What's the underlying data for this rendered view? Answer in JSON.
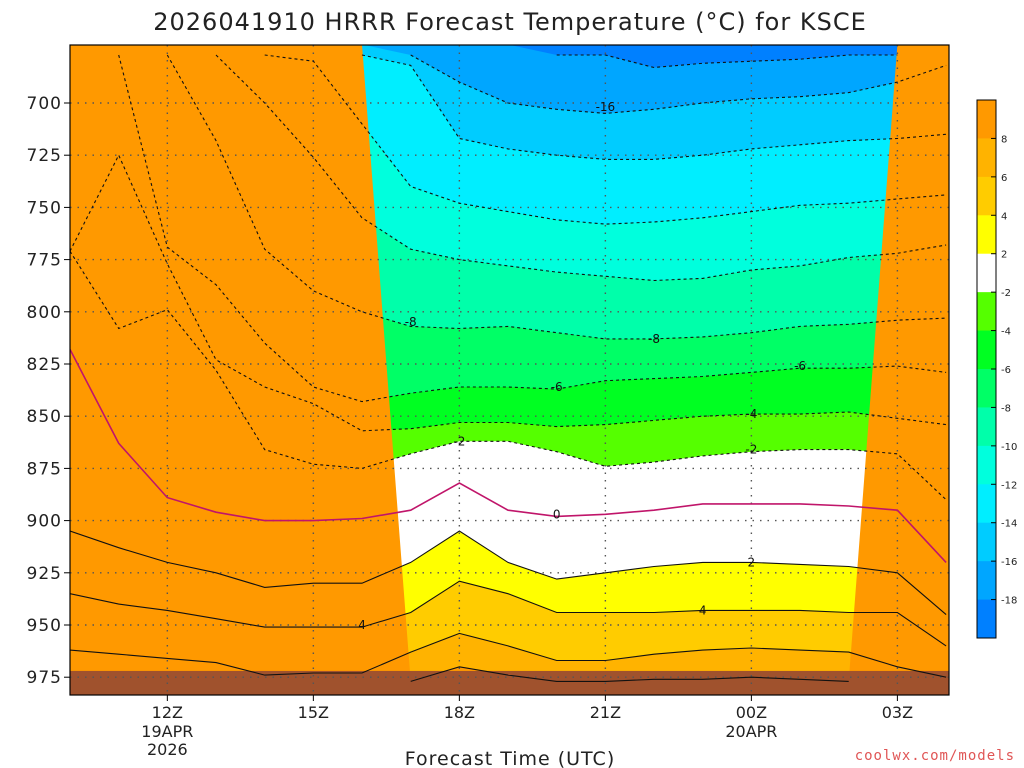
{
  "title": "2026041910 HRRR Forecast Temperature (°C) for KSCE",
  "credit": "coolwx.com/models",
  "colors": {
    "credit": "#e05555",
    "freezing_line": "#c0156a",
    "ground": "#a0522d"
  },
  "chart_data": {
    "type": "contour",
    "title": "2026041910 HRRR Forecast Temperature (°C) for KSCE",
    "xlabel": "Forecast Time (UTC)",
    "ylabel": "",
    "x_ticks": [
      {
        "label": "12Z",
        "sub": [
          "19APR",
          "2026"
        ]
      },
      {
        "label": "15Z",
        "sub": []
      },
      {
        "label": "18Z",
        "sub": []
      },
      {
        "label": "21Z",
        "sub": []
      },
      {
        "label": "00Z",
        "sub": [
          "20APR"
        ]
      },
      {
        "label": "03Z",
        "sub": []
      }
    ],
    "x_times_utc_hour": [
      10,
      11,
      12,
      13,
      14,
      15,
      16,
      17,
      18,
      19,
      20,
      21,
      22,
      23,
      24,
      25,
      26,
      27,
      28
    ],
    "y_ticks": [
      700,
      725,
      750,
      775,
      800,
      825,
      850,
      875,
      900,
      925,
      950,
      975
    ],
    "y_range_hpa": [
      677,
      979
    ],
    "colorbar": {
      "ticks": [
        8,
        6,
        4,
        2,
        -2,
        -4,
        -6,
        -8,
        -10,
        -12,
        -14,
        -16,
        -18
      ],
      "bands": [
        {
          "lo": 8,
          "hi": 10,
          "color": "#ff9900"
        },
        {
          "lo": 6,
          "hi": 8,
          "color": "#ffb300"
        },
        {
          "lo": 4,
          "hi": 6,
          "color": "#ffcc00"
        },
        {
          "lo": 2,
          "hi": 4,
          "color": "#ffff00"
        },
        {
          "lo": -2,
          "hi": 2,
          "color": "#ffffff"
        },
        {
          "lo": -4,
          "hi": -2,
          "color": "#55ff00"
        },
        {
          "lo": -6,
          "hi": -4,
          "color": "#00ff22"
        },
        {
          "lo": -8,
          "hi": -6,
          "color": "#00ff66"
        },
        {
          "lo": -10,
          "hi": -8,
          "color": "#00ffaa"
        },
        {
          "lo": -12,
          "hi": -10,
          "color": "#00ffdd"
        },
        {
          "lo": -14,
          "hi": -12,
          "color": "#00eeff"
        },
        {
          "lo": -16,
          "hi": -14,
          "color": "#00ccff"
        },
        {
          "lo": -18,
          "hi": -16,
          "color": "#00a6ff"
        },
        {
          "lo": -20,
          "hi": -18,
          "color": "#0080ff"
        }
      ]
    },
    "isotherms_hpa": [
      {
        "t": -18,
        "p": [
          null,
          null,
          null,
          null,
          null,
          null,
          null,
          null,
          null,
          null,
          677,
          677,
          683,
          681,
          680,
          679,
          677,
          677,
          null
        ]
      },
      {
        "t": -16,
        "p": [
          null,
          null,
          null,
          null,
          null,
          null,
          null,
          677,
          690,
          700,
          703,
          705,
          703,
          700,
          698,
          697,
          695,
          690,
          682
        ]
      },
      {
        "t": -14,
        "p": [
          null,
          null,
          null,
          null,
          null,
          null,
          677,
          682,
          717,
          722,
          725,
          727,
          727,
          725,
          722,
          720,
          718,
          717,
          715
        ]
      },
      {
        "t": -12,
        "p": [
          null,
          null,
          null,
          null,
          677,
          680,
          710,
          740,
          748,
          752,
          756,
          758,
          757,
          755,
          752,
          749,
          748,
          746,
          744
        ]
      },
      {
        "t": -10,
        "p": [
          null,
          null,
          null,
          677,
          700,
          726,
          755,
          770,
          775,
          778,
          781,
          783,
          785,
          784,
          780,
          778,
          774,
          772,
          768
        ]
      },
      {
        "t": -8,
        "p": [
          null,
          null,
          677,
          718,
          770,
          790,
          800,
          807,
          808,
          807,
          810,
          813,
          813,
          812,
          810,
          807,
          806,
          804,
          803
        ]
      },
      {
        "t": -6,
        "p": [
          null,
          677,
          769,
          787,
          815,
          836,
          843,
          839,
          836,
          836,
          837,
          833,
          832,
          831,
          829,
          827,
          827,
          826,
          829
        ]
      },
      {
        "t": -4,
        "p": [
          771,
          725,
          777,
          823,
          836,
          844,
          857,
          856,
          853,
          853,
          855,
          854,
          852,
          850,
          849,
          849,
          848,
          851,
          854
        ]
      },
      {
        "t": -2,
        "p": [
          771,
          808,
          799,
          828,
          866,
          873,
          875,
          868,
          862,
          862,
          867,
          874,
          872,
          869,
          867,
          866,
          866,
          868,
          890
        ]
      },
      {
        "t": 0,
        "p": [
          818,
          863,
          889,
          896,
          900,
          900,
          899,
          895,
          882,
          895,
          898,
          897,
          895,
          892,
          892,
          892,
          893,
          895,
          920
        ]
      },
      {
        "t": 2,
        "p": [
          905,
          913,
          920,
          925,
          932,
          930,
          930,
          920,
          905,
          920,
          928,
          925,
          922,
          920,
          920,
          921,
          922,
          925,
          945
        ]
      },
      {
        "t": 4,
        "p": [
          935,
          940,
          943,
          947,
          951,
          951,
          951,
          944,
          929,
          935,
          944,
          944,
          944,
          943,
          943,
          943,
          944,
          944,
          960
        ]
      },
      {
        "t": 6,
        "p": [
          962,
          964,
          966,
          968,
          974,
          973,
          973,
          963,
          954,
          960,
          967,
          967,
          964,
          962,
          961,
          962,
          963,
          970,
          975
        ]
      },
      {
        "t": 8,
        "p": [
          null,
          null,
          null,
          null,
          null,
          null,
          null,
          977,
          970,
          974,
          977,
          977,
          976,
          976,
          975,
          976,
          977,
          null,
          null
        ]
      }
    ],
    "contour_labels": [
      {
        "text": "-16",
        "x": 21,
        "p": 702
      },
      {
        "text": "-8",
        "x": 17,
        "p": 805
      },
      {
        "text": "-8",
        "x": 22,
        "p": 813
      },
      {
        "text": "-6",
        "x": 20,
        "p": 836
      },
      {
        "text": "-6",
        "x": 25,
        "p": 826
      },
      {
        "text": "-4",
        "x": 24,
        "p": 849
      },
      {
        "text": "-2",
        "x": 18,
        "p": 862
      },
      {
        "text": "-2",
        "x": 24,
        "p": 866
      },
      {
        "text": "0",
        "x": 20,
        "p": 897
      },
      {
        "text": "2",
        "x": 24,
        "p": 920
      },
      {
        "text": "4",
        "x": 16,
        "p": 950
      },
      {
        "text": "4",
        "x": 23,
        "p": 943
      }
    ],
    "ground_hpa": 972,
    "grid": true
  }
}
